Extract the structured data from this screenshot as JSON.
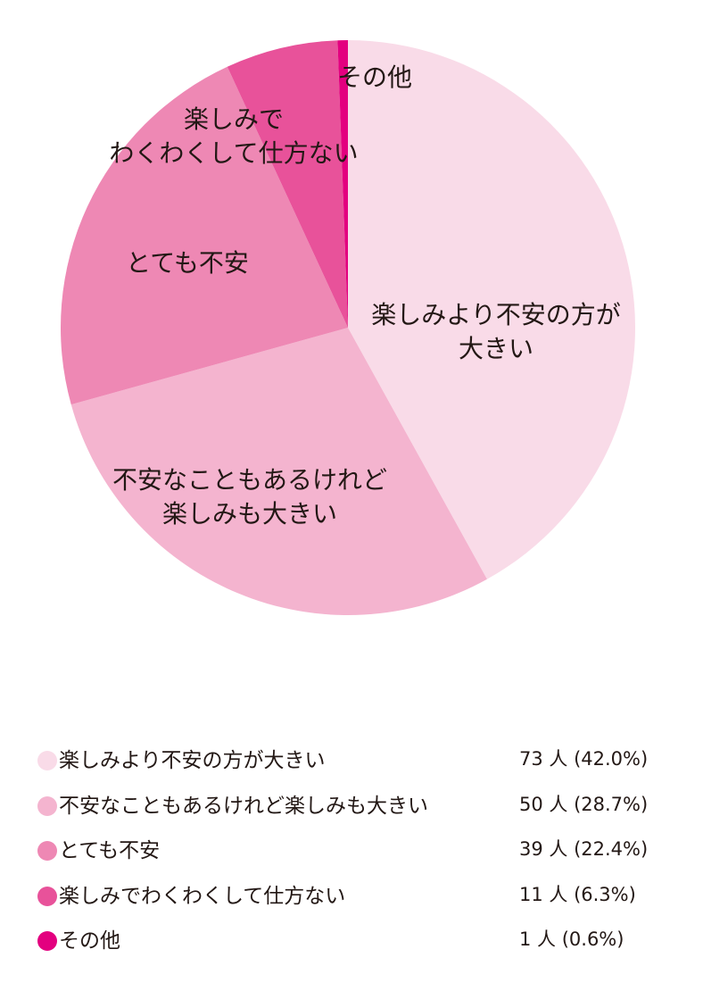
{
  "chart_data": {
    "type": "pie",
    "start": "12 o'clock",
    "direction": "clockwise",
    "categories": [
      "楽しみより不安の方が大きい",
      "不安なこともあるけれど楽しみも大きい",
      "とても不安",
      "楽しみでわくわくして仕方ない",
      "その他"
    ],
    "values": [
      73,
      50,
      39,
      11,
      1
    ],
    "percentages": [
      42.0,
      28.7,
      22.4,
      6.3,
      0.6
    ],
    "colors": [
      "#f9dbe8",
      "#f4b4cf",
      "#ee88b4",
      "#e8529a",
      "#e3007f"
    ],
    "slice_labels": [
      [
        "楽しみより不安の方が",
        "大きい"
      ],
      [
        "不安なこともあるけれど",
        "楽しみも大きい"
      ],
      [
        "とても不安"
      ],
      [
        "楽しみで",
        "わくわくして仕方ない"
      ],
      [
        "その他"
      ]
    ],
    "legend": [
      {
        "label": "楽しみより不安の方が大きい",
        "count": "73 人 (42.0%)"
      },
      {
        "label": "不安なこともあるけれど楽しみも大きい",
        "count": "50 人 (28.7%)"
      },
      {
        "label": "とても不安",
        "count": "39 人 (22.4%)"
      },
      {
        "label": "楽しみでわくわくして仕方ない",
        "count": "11 人 (6.3%)"
      },
      {
        "label": "その他",
        "count": "1 人 (0.6%)"
      }
    ]
  }
}
